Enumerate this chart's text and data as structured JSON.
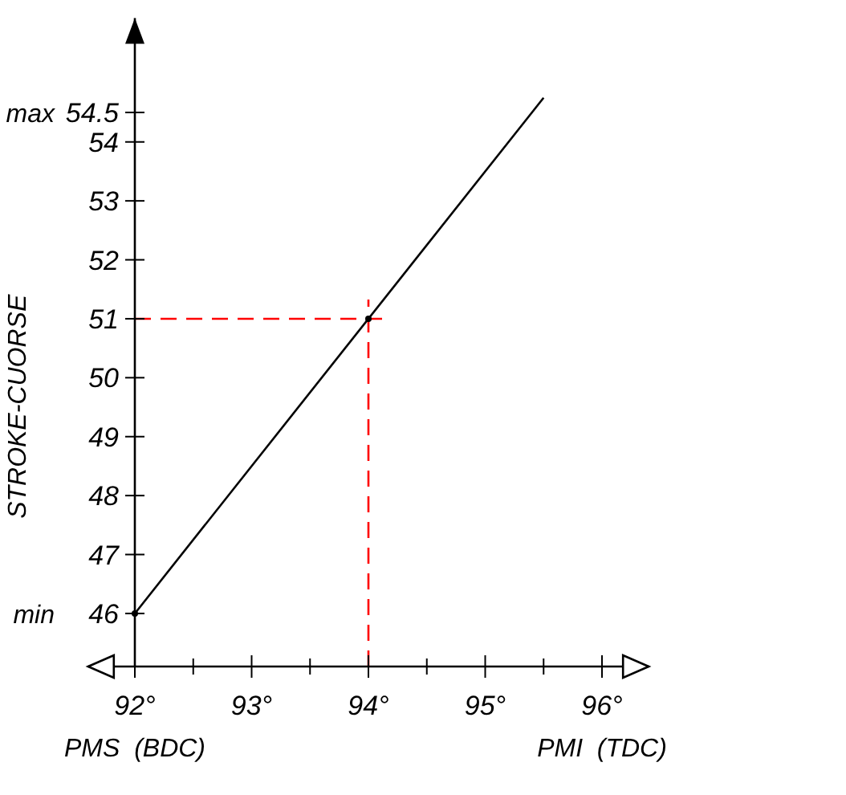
{
  "chart_data": {
    "type": "line",
    "ylabel": "STROKE-CUORSE",
    "xlim": [
      91.6,
      96.4
    ],
    "ylim": [
      45.1,
      56.1
    ],
    "xticks": [
      {
        "value": 92,
        "label": "92°"
      },
      {
        "value": 92.5,
        "label": null
      },
      {
        "value": 93,
        "label": "93°"
      },
      {
        "value": 93.5,
        "label": null
      },
      {
        "value": 94,
        "label": "94°"
      },
      {
        "value": 94.5,
        "label": null
      },
      {
        "value": 95,
        "label": "95°"
      },
      {
        "value": 95.5,
        "label": null
      },
      {
        "value": 96,
        "label": "96°"
      }
    ],
    "yticks": [
      46,
      47,
      48,
      49,
      50,
      51,
      52,
      53,
      54,
      54.5
    ],
    "series": [
      {
        "color": "#000000",
        "x": [
          92,
          95.5
        ],
        "values": [
          46,
          54.75
        ]
      },
      {
        "type": "scatter",
        "color": "#000000",
        "x": [
          92,
          94
        ],
        "values": [
          46,
          51
        ],
        "marker": "circle"
      }
    ],
    "ref_lines": [
      {
        "axis": "x",
        "value": 94,
        "color": "#ff0000",
        "line_style": "dashed"
      },
      {
        "axis": "y",
        "value": 51,
        "color": "#ff0000",
        "line_style": "dashed"
      }
    ],
    "annotations": [
      "max",
      "min",
      "PMS  (BDC)",
      "PMI  (TDC)"
    ],
    "grid": false
  }
}
